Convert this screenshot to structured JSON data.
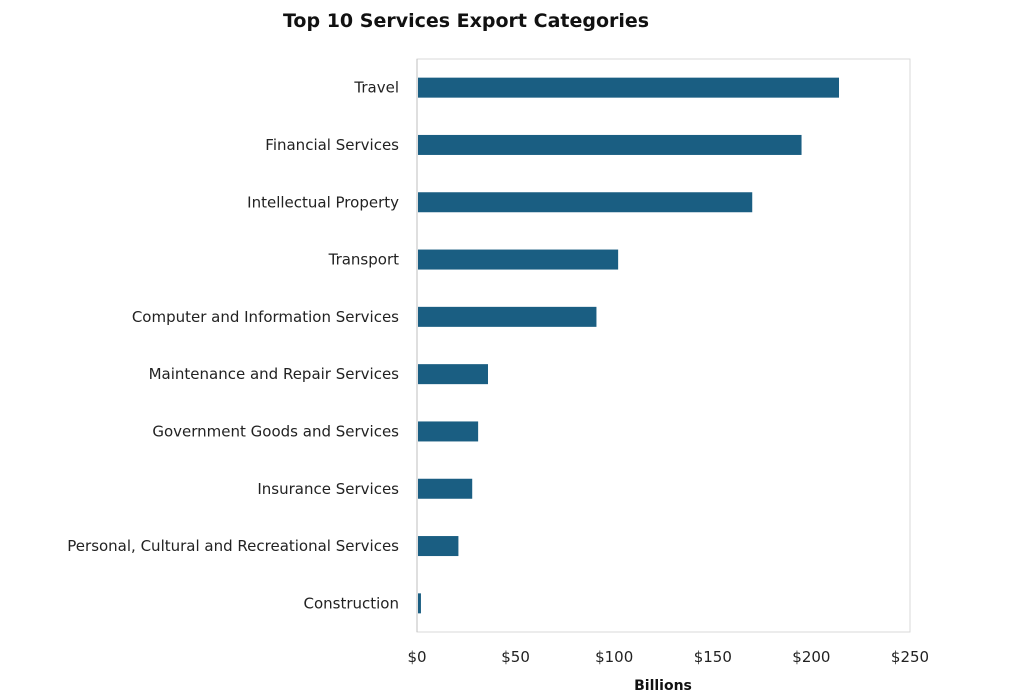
{
  "chart_data": {
    "type": "bar",
    "orientation": "horizontal",
    "title": "Top 10 Services Export Categories",
    "xlabel": "Billions",
    "ylabel": "",
    "categories": [
      "Travel",
      "Financial Services",
      "Intellectual Property",
      "Transport",
      "Computer and Information Services",
      "Maintenance and Repair Services",
      "Government Goods and Services",
      "Insurance Services",
      "Personal, Cultural and Recreational Services",
      "Construction"
    ],
    "values": [
      214,
      195,
      170,
      102,
      91,
      36,
      31,
      28,
      21,
      2
    ],
    "xlim": [
      0,
      250
    ],
    "x_ticks": [
      0,
      50,
      100,
      150,
      200,
      250
    ],
    "x_tick_labels": [
      "$0",
      "$50",
      "$100",
      "$150",
      "$200",
      "$250"
    ],
    "bar_color": "#1a5e82",
    "grid": false,
    "legend": "none"
  }
}
